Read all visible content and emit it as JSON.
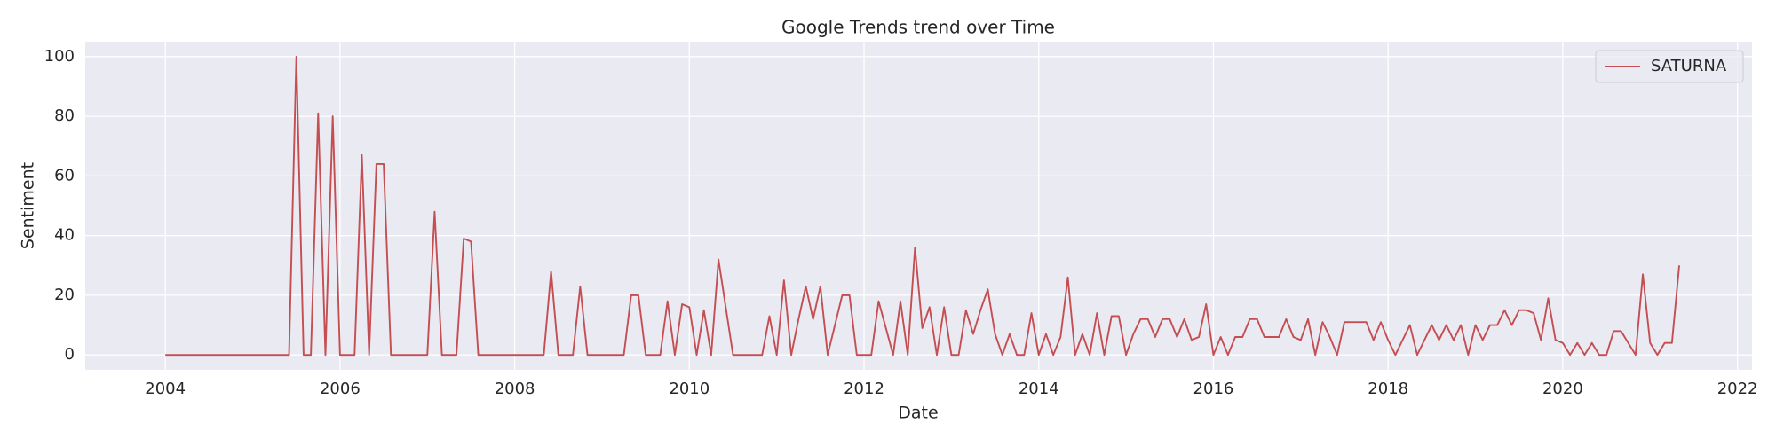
{
  "chart_data": {
    "type": "line",
    "title": "Google Trends trend over Time",
    "x_label": "Date",
    "y_label": "Sentiment",
    "x": [
      "2004-01",
      "2004-02",
      "2004-03",
      "2004-04",
      "2004-05",
      "2004-06",
      "2004-07",
      "2004-08",
      "2004-09",
      "2004-10",
      "2004-11",
      "2004-12",
      "2005-01",
      "2005-02",
      "2005-03",
      "2005-04",
      "2005-05",
      "2005-06",
      "2005-07",
      "2005-08",
      "2005-09",
      "2005-10",
      "2005-11",
      "2005-12",
      "2006-01",
      "2006-02",
      "2006-03",
      "2006-04",
      "2006-05",
      "2006-06",
      "2006-07",
      "2006-08",
      "2006-09",
      "2006-10",
      "2006-11",
      "2006-12",
      "2007-01",
      "2007-02",
      "2007-03",
      "2007-04",
      "2007-05",
      "2007-06",
      "2007-07",
      "2007-08",
      "2007-09",
      "2007-10",
      "2007-11",
      "2007-12",
      "2008-01",
      "2008-02",
      "2008-03",
      "2008-04",
      "2008-05",
      "2008-06",
      "2008-07",
      "2008-08",
      "2008-09",
      "2008-10",
      "2008-11",
      "2008-12",
      "2009-01",
      "2009-02",
      "2009-03",
      "2009-04",
      "2009-05",
      "2009-06",
      "2009-07",
      "2009-08",
      "2009-09",
      "2009-10",
      "2009-11",
      "2009-12",
      "2010-01",
      "2010-02",
      "2010-03",
      "2010-04",
      "2010-05",
      "2010-06",
      "2010-07",
      "2010-08",
      "2010-09",
      "2010-10",
      "2010-11",
      "2010-12",
      "2011-01",
      "2011-02",
      "2011-03",
      "2011-04",
      "2011-05",
      "2011-06",
      "2011-07",
      "2011-08",
      "2011-09",
      "2011-10",
      "2011-11",
      "2011-12",
      "2012-01",
      "2012-02",
      "2012-03",
      "2012-04",
      "2012-05",
      "2012-06",
      "2012-07",
      "2012-08",
      "2012-09",
      "2012-10",
      "2012-11",
      "2012-12",
      "2013-01",
      "2013-02",
      "2013-03",
      "2013-04",
      "2013-05",
      "2013-06",
      "2013-07",
      "2013-08",
      "2013-09",
      "2013-10",
      "2013-11",
      "2013-12",
      "2014-01",
      "2014-02",
      "2014-03",
      "2014-04",
      "2014-05",
      "2014-06",
      "2014-07",
      "2014-08",
      "2014-09",
      "2014-10",
      "2014-11",
      "2014-12",
      "2015-01",
      "2015-02",
      "2015-03",
      "2015-04",
      "2015-05",
      "2015-06",
      "2015-07",
      "2015-08",
      "2015-09",
      "2015-10",
      "2015-11",
      "2015-12",
      "2016-01",
      "2016-02",
      "2016-03",
      "2016-04",
      "2016-05",
      "2016-06",
      "2016-07",
      "2016-08",
      "2016-09",
      "2016-10",
      "2016-11",
      "2016-12",
      "2017-01",
      "2017-02",
      "2017-03",
      "2017-04",
      "2017-05",
      "2017-06",
      "2017-07",
      "2017-08",
      "2017-09",
      "2017-10",
      "2017-11",
      "2017-12",
      "2018-01",
      "2018-02",
      "2018-03",
      "2018-04",
      "2018-05",
      "2018-06",
      "2018-07",
      "2018-08",
      "2018-09",
      "2018-10",
      "2018-11",
      "2018-12",
      "2019-01",
      "2019-02",
      "2019-03",
      "2019-04",
      "2019-05",
      "2019-06",
      "2019-07",
      "2019-08",
      "2019-09",
      "2019-10",
      "2019-11",
      "2019-12",
      "2020-01",
      "2020-02",
      "2020-03",
      "2020-04",
      "2020-05",
      "2020-06",
      "2020-07",
      "2020-08",
      "2020-09",
      "2020-10",
      "2020-11",
      "2020-12",
      "2021-01",
      "2021-02",
      "2021-03",
      "2021-04",
      "2021-05"
    ],
    "series": [
      {
        "name": "SATURNA",
        "color": "#c44e52",
        "values": [
          0,
          0,
          0,
          0,
          0,
          0,
          0,
          0,
          0,
          0,
          0,
          0,
          0,
          0,
          0,
          0,
          0,
          0,
          100,
          0,
          0,
          81,
          0,
          80,
          0,
          0,
          0,
          67,
          0,
          64,
          64,
          0,
          0,
          0,
          0,
          0,
          0,
          48,
          0,
          0,
          0,
          39,
          38,
          0,
          0,
          0,
          0,
          0,
          0,
          0,
          0,
          0,
          0,
          28,
          0,
          0,
          0,
          23,
          0,
          0,
          0,
          0,
          0,
          0,
          20,
          20,
          0,
          0,
          0,
          18,
          0,
          17,
          16,
          0,
          15,
          0,
          32,
          16,
          0,
          0,
          0,
          0,
          0,
          13,
          0,
          25,
          0,
          12,
          23,
          12,
          23,
          0,
          10,
          20,
          20,
          0,
          0,
          0,
          18,
          9,
          0,
          18,
          0,
          36,
          9,
          16,
          0,
          16,
          0,
          0,
          15,
          7,
          15,
          22,
          7,
          0,
          7,
          0,
          0,
          14,
          0,
          7,
          0,
          6,
          26,
          0,
          7,
          0,
          14,
          0,
          13,
          13,
          0,
          7,
          12,
          12,
          6,
          12,
          12,
          6,
          12,
          5,
          6,
          17,
          0,
          6,
          0,
          6,
          6,
          12,
          12,
          6,
          6,
          6,
          12,
          6,
          5,
          12,
          0,
          11,
          6,
          0,
          11,
          11,
          11,
          11,
          5,
          11,
          5,
          0,
          5,
          10,
          0,
          5,
          10,
          5,
          10,
          5,
          10,
          0,
          10,
          5,
          10,
          10,
          15,
          10,
          15,
          15,
          14,
          5,
          19,
          5,
          4,
          0,
          4,
          0,
          4,
          0,
          0,
          8,
          8,
          4,
          0,
          27,
          4,
          0,
          4,
          4,
          30
        ]
      }
    ],
    "xlim": [
      "2003-02",
      "2022-03"
    ],
    "xticks": [
      2004,
      2006,
      2008,
      2010,
      2012,
      2014,
      2016,
      2018,
      2020,
      2022
    ],
    "ylim": [
      -5,
      105
    ],
    "yticks": [
      0,
      20,
      40,
      60,
      80,
      100
    ],
    "grid": true,
    "legend": "upper right",
    "background": "#eaeaf2"
  }
}
